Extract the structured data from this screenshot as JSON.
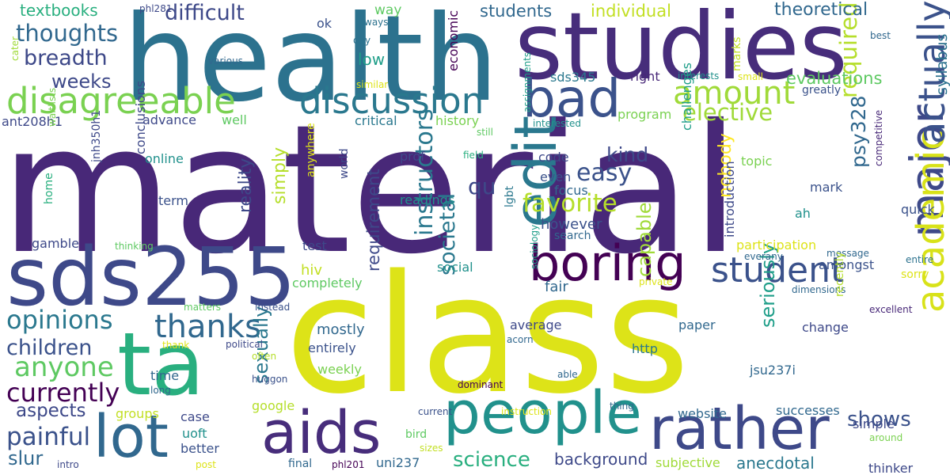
{
  "words": [
    {
      "text": "material",
      "color": "#482878"
    },
    {
      "text": "class",
      "color": "#dde318"
    },
    {
      "text": "health",
      "color": "#2c728e"
    },
    {
      "text": "studies",
      "color": "#472d7b"
    },
    {
      "text": "sds255",
      "color": "#3e4989"
    },
    {
      "text": "ta",
      "color": "#29af7f"
    },
    {
      "text": "people",
      "color": "#21918c"
    },
    {
      "text": "lot",
      "color": "#31688e"
    },
    {
      "text": "aids",
      "color": "#472d7b"
    },
    {
      "text": "rather",
      "color": "#3e4989"
    },
    {
      "text": "boring",
      "color": "#440154"
    },
    {
      "text": "bad",
      "color": "#3b528b"
    },
    {
      "text": "major",
      "color": "#3e4989"
    },
    {
      "text": "edit",
      "color": "#2a788e"
    },
    {
      "text": "disagreeable",
      "color": "#7ad151"
    },
    {
      "text": "discussion",
      "color": "#2a788e"
    },
    {
      "text": "student",
      "color": "#3b528b"
    },
    {
      "text": "academic",
      "color": "#d8e219"
    },
    {
      "text": "actually",
      "color": "#3b528b"
    },
    {
      "text": "amount",
      "color": "#a0da39"
    },
    {
      "text": "thanks",
      "color": "#31688e"
    },
    {
      "text": "opinions",
      "color": "#2a788e"
    },
    {
      "text": "anyone",
      "color": "#5ec962"
    },
    {
      "text": "currently",
      "color": "#440154"
    },
    {
      "text": "children",
      "color": "#3b528b"
    },
    {
      "text": "painful",
      "color": "#3b528b"
    },
    {
      "text": "instructors",
      "color": "#2a788e"
    },
    {
      "text": "thoughts",
      "color": "#31688e"
    },
    {
      "text": "breadth",
      "color": "#3e4989"
    },
    {
      "text": "difficult",
      "color": "#3e4989"
    },
    {
      "text": "easy",
      "color": "#3b528b"
    },
    {
      "text": "favorite",
      "color": "#b5de2b"
    },
    {
      "text": "required",
      "color": "#b5de2b"
    },
    {
      "text": "elective",
      "color": "#a0da39"
    },
    {
      "text": "psy328",
      "color": "#31688e"
    },
    {
      "text": "science",
      "color": "#29af7f"
    },
    {
      "text": "background",
      "color": "#3e4989"
    },
    {
      "text": "shows",
      "color": "#3b528b"
    },
    {
      "text": "slur",
      "color": "#31688e"
    },
    {
      "text": "sexually",
      "color": "#2a788e"
    },
    {
      "text": "aspects",
      "color": "#3e4989"
    },
    {
      "text": "societal",
      "color": "#2a788e"
    },
    {
      "text": "seriously",
      "color": "#1f9e89"
    },
    {
      "text": "capable",
      "color": "#a0da39"
    },
    {
      "text": "anecdotal",
      "color": "#2a788e"
    },
    {
      "text": "requirement",
      "color": "#3e4989"
    },
    {
      "text": "reality",
      "color": "#3e4989"
    },
    {
      "text": "simply",
      "color": "#b5de2b"
    },
    {
      "text": "nobody",
      "color": "#fde725"
    },
    {
      "text": "kind",
      "color": "#3e4989"
    },
    {
      "text": "weeks",
      "color": "#3e4989"
    },
    {
      "text": "students",
      "color": "#31688e"
    },
    {
      "text": "individual",
      "color": "#c2df23"
    },
    {
      "text": "theoretical",
      "color": "#31688e"
    },
    {
      "text": "syllabus",
      "color": "#2c728e"
    },
    {
      "text": "evaluations",
      "color": "#5ec962"
    },
    {
      "text": "introduction",
      "color": "#3e4989"
    },
    {
      "text": "textbooks",
      "color": "#29af7f"
    },
    {
      "text": "low",
      "color": "#1f9e89"
    },
    {
      "text": "economic",
      "color": "#440154"
    },
    {
      "text": "assignments",
      "color": "#1f9e89"
    },
    {
      "text": "marks",
      "color": "#c2df23"
    },
    {
      "text": "sds345",
      "color": "#2a788e"
    },
    {
      "text": "right",
      "color": "#482878"
    },
    {
      "text": "interests",
      "color": "#21918c"
    },
    {
      "text": "small",
      "color": "#dde318"
    },
    {
      "text": "greatly",
      "color": "#3b528b"
    },
    {
      "text": "way",
      "color": "#5ec962"
    },
    {
      "text": "ways",
      "color": "#2c728e"
    },
    {
      "text": "day",
      "color": "#2c728e"
    },
    {
      "text": "similar",
      "color": "#dde318"
    },
    {
      "text": "ok",
      "color": "#3b528b"
    },
    {
      "text": "phl281",
      "color": "#3e4989"
    },
    {
      "text": "cater",
      "color": "#a0da39"
    },
    {
      "text": "various",
      "color": "#31688e"
    },
    {
      "text": "best",
      "color": "#31688e"
    },
    {
      "text": "ant208h1",
      "color": "#3e4989"
    },
    {
      "text": "advance",
      "color": "#3e4989"
    },
    {
      "text": "well",
      "color": "#5ec962"
    },
    {
      "text": "critical",
      "color": "#2a788e"
    },
    {
      "text": "history",
      "color": "#7ad151"
    },
    {
      "text": "program",
      "color": "#7ad151"
    },
    {
      "text": "interested",
      "color": "#21918c"
    },
    {
      "text": "still",
      "color": "#5ec962"
    },
    {
      "text": "waitlists",
      "color": "#7ad151"
    },
    {
      "text": "jnh350h1",
      "color": "#3e4989"
    },
    {
      "text": "conclusions",
      "color": "#3e4989"
    },
    {
      "text": "online",
      "color": "#21918c"
    },
    {
      "text": "prof",
      "color": "#3e4989"
    },
    {
      "text": "field",
      "color": "#29af7f"
    },
    {
      "text": "code",
      "color": "#3e4989"
    },
    {
      "text": "even",
      "color": "#3b528b"
    },
    {
      "text": "topic",
      "color": "#7ad151"
    },
    {
      "text": "competitive",
      "color": "#482878"
    },
    {
      "text": "challenges",
      "color": "#1f9e89"
    },
    {
      "text": "focus",
      "color": "#31688e"
    },
    {
      "text": "mark",
      "color": "#3b528b"
    },
    {
      "text": "qu",
      "color": "#3e4989"
    },
    {
      "text": "home",
      "color": "#29af7f"
    },
    {
      "text": "term",
      "color": "#3b528b"
    },
    {
      "text": "anywhere",
      "color": "#dde318"
    },
    {
      "text": "world",
      "color": "#3e4989"
    },
    {
      "text": "readings",
      "color": "#21918c"
    },
    {
      "text": "lgbt",
      "color": "#2a788e"
    },
    {
      "text": "ah",
      "color": "#21918c"
    },
    {
      "text": "quick",
      "color": "#3b528b"
    },
    {
      "text": "however",
      "color": "#3b528b"
    },
    {
      "text": "search",
      "color": "#31688e"
    },
    {
      "text": "gamble",
      "color": "#3e4989"
    },
    {
      "text": "thinking",
      "color": "#5ec962"
    },
    {
      "text": "test",
      "color": "#3e4989"
    },
    {
      "text": "social",
      "color": "#21918c"
    },
    {
      "text": "sociology",
      "color": "#1f9e89"
    },
    {
      "text": "participation",
      "color": "#dde318"
    },
    {
      "text": "amongst",
      "color": "#3b528b"
    },
    {
      "text": "everany",
      "color": "#31688e"
    },
    {
      "text": "message",
      "color": "#31688e"
    },
    {
      "text": "entire",
      "color": "#2c728e"
    },
    {
      "text": "sorry",
      "color": "#dde318"
    },
    {
      "text": "hiv",
      "color": "#c2df23"
    },
    {
      "text": "completely",
      "color": "#5ec962"
    },
    {
      "text": "fair",
      "color": "#31688e"
    },
    {
      "text": "private",
      "color": "#dde318"
    },
    {
      "text": "dimensions",
      "color": "#31688e"
    },
    {
      "text": "matters",
      "color": "#5ec962"
    },
    {
      "text": "instead",
      "color": "#3b528b"
    },
    {
      "text": "mostly",
      "color": "#31688e"
    },
    {
      "text": "average",
      "color": "#3e4989"
    },
    {
      "text": "change",
      "color": "#3e4989"
    },
    {
      "text": "excellent",
      "color": "#482878"
    },
    {
      "text": "paper",
      "color": "#31688e"
    },
    {
      "text": "recently",
      "color": "#b5de2b"
    },
    {
      "text": "thank",
      "color": "#dde318"
    },
    {
      "text": "political",
      "color": "#3e4989"
    },
    {
      "text": "often",
      "color": "#b5de2b"
    },
    {
      "text": "entirely",
      "color": "#3b528b"
    },
    {
      "text": "acorn",
      "color": "#31688e"
    },
    {
      "text": "http",
      "color": "#2a788e"
    },
    {
      "text": "jsu237i",
      "color": "#31688e"
    },
    {
      "text": "weekly",
      "color": "#7ad151"
    },
    {
      "text": "able",
      "color": "#31688e"
    },
    {
      "text": "time",
      "color": "#31688e"
    },
    {
      "text": "huggon",
      "color": "#3b528b"
    },
    {
      "text": "long",
      "color": "#31688e"
    },
    {
      "text": "dominant",
      "color": "#440154"
    },
    {
      "text": "groups",
      "color": "#c2df23"
    },
    {
      "text": "google",
      "color": "#b5de2b"
    },
    {
      "text": "case",
      "color": "#3e4989"
    },
    {
      "text": "thing",
      "color": "#31688e"
    },
    {
      "text": "website",
      "color": "#31688e"
    },
    {
      "text": "successes",
      "color": "#31688e"
    },
    {
      "text": "uoft",
      "color": "#21918c"
    },
    {
      "text": "current",
      "color": "#3b528b"
    },
    {
      "text": "instruction",
      "color": "#dde318"
    },
    {
      "text": "simple",
      "color": "#3e4989"
    },
    {
      "text": "around",
      "color": "#7ad151"
    },
    {
      "text": "better",
      "color": "#3b528b"
    },
    {
      "text": "bird",
      "color": "#5ec962"
    },
    {
      "text": "sizes",
      "color": "#c2df23"
    },
    {
      "text": "thinker",
      "color": "#3e4989"
    },
    {
      "text": "intro",
      "color": "#3e4989"
    },
    {
      "text": "post",
      "color": "#dde318"
    },
    {
      "text": "final",
      "color": "#31688e"
    },
    {
      "text": "phl201",
      "color": "#440154"
    },
    {
      "text": "uni237",
      "color": "#31688e"
    },
    {
      "text": "subjective",
      "color": "#a0da39"
    }
  ]
}
